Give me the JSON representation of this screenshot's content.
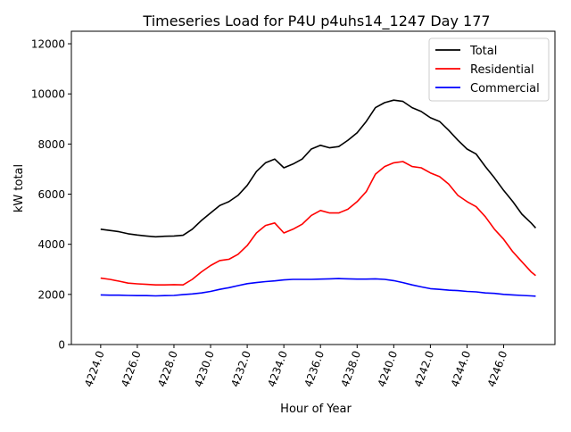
{
  "chart_data": {
    "type": "line",
    "title": "Timeseries Load for P4U p4uhs14_1247  Day 177",
    "xlabel": "Hour of Year",
    "ylabel": "kW total",
    "xlim": [
      4222.4,
      4248.8
    ],
    "ylim": [
      0,
      12500
    ],
    "xticks": [
      4224,
      4226,
      4228,
      4230,
      4232,
      4234,
      4236,
      4238,
      4240,
      4242,
      4244,
      4246
    ],
    "xtick_labels": [
      "4224.0",
      "4226.0",
      "4228.0",
      "4230.0",
      "4232.0",
      "4234.0",
      "4236.0",
      "4238.0",
      "4240.0",
      "4242.0",
      "4244.0",
      "4246.0"
    ],
    "yticks": [
      0,
      2000,
      4000,
      6000,
      8000,
      10000,
      12000
    ],
    "ytick_labels": [
      "0",
      "2000",
      "4000",
      "6000",
      "8000",
      "10000",
      "12000"
    ],
    "grid": false,
    "legend_position": "top-right",
    "x": [
      4224,
      4224.5,
      4225,
      4225.5,
      4226,
      4226.5,
      4227,
      4227.5,
      4228,
      4228.5,
      4229,
      4229.5,
      4230,
      4230.5,
      4231,
      4231.5,
      4232,
      4232.5,
      4233,
      4233.5,
      4234,
      4234.5,
      4235,
      4235.5,
      4236,
      4236.5,
      4237,
      4237.5,
      4238,
      4238.5,
      4239,
      4239.5,
      4240,
      4240.5,
      4241,
      4241.5,
      4242,
      4242.5,
      4243,
      4243.5,
      4244,
      4244.5,
      4245,
      4245.5,
      4246,
      4246.5,
      4247,
      4247.5,
      4247.75
    ],
    "series": [
      {
        "name": "Total",
        "color": "#000000",
        "values": [
          4600,
          4550,
          4500,
          4420,
          4370,
          4330,
          4300,
          4320,
          4330,
          4360,
          4600,
          4950,
          5250,
          5550,
          5700,
          5950,
          6350,
          6900,
          7250,
          7400,
          7050,
          7200,
          7400,
          7800,
          7950,
          7850,
          7900,
          8150,
          8450,
          8900,
          9450,
          9650,
          9750,
          9700,
          9450,
          9300,
          9050,
          8900,
          8550,
          8150,
          7800,
          7600,
          7100,
          6650,
          6150,
          5700,
          5200,
          4850,
          4650
        ]
      },
      {
        "name": "Residential",
        "color": "#ff0000",
        "values": [
          2650,
          2600,
          2530,
          2450,
          2420,
          2400,
          2380,
          2380,
          2390,
          2380,
          2600,
          2900,
          3150,
          3350,
          3400,
          3600,
          3950,
          4450,
          4750,
          4850,
          4450,
          4600,
          4800,
          5150,
          5350,
          5250,
          5250,
          5400,
          5700,
          6100,
          6800,
          7100,
          7250,
          7300,
          7100,
          7050,
          6850,
          6700,
          6400,
          5950,
          5700,
          5500,
          5100,
          4600,
          4200,
          3700,
          3300,
          2900,
          2750
        ]
      },
      {
        "name": "Commercial",
        "color": "#0000ff",
        "values": [
          1980,
          1970,
          1970,
          1960,
          1950,
          1950,
          1940,
          1950,
          1960,
          1990,
          2020,
          2060,
          2120,
          2200,
          2270,
          2350,
          2430,
          2470,
          2510,
          2540,
          2580,
          2600,
          2600,
          2600,
          2610,
          2620,
          2630,
          2620,
          2610,
          2610,
          2620,
          2600,
          2550,
          2470,
          2380,
          2300,
          2230,
          2200,
          2170,
          2150,
          2120,
          2100,
          2060,
          2040,
          2000,
          1980,
          1960,
          1940,
          1930
        ]
      }
    ]
  }
}
